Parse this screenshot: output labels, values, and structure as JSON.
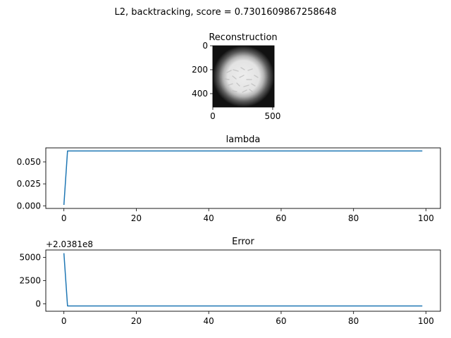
{
  "figure": {
    "suptitle": "L2, backtracking, score = 0.7301609867258648",
    "colors": {
      "line": "#1f77b4",
      "axes": "#000000",
      "background": "#ffffff"
    }
  },
  "chart_data": [
    {
      "type": "heatmap",
      "title": "Reconstruction",
      "xlabel": "",
      "ylabel": "",
      "xlim": [
        0,
        512
      ],
      "ylim": [
        512,
        0
      ],
      "xticks": [
        0,
        500
      ],
      "yticks": [
        0,
        200,
        400
      ],
      "colormap": "gray",
      "description_of_content": "bright circular blob on dark background"
    },
    {
      "type": "line",
      "title": "lambda",
      "xlabel": "",
      "ylabel": "",
      "xlim": [
        -5,
        104
      ],
      "ylim": [
        -0.003,
        0.066
      ],
      "xticks": [
        0,
        20,
        40,
        60,
        80,
        100
      ],
      "yticks": [
        0.0,
        0.025,
        0.05
      ],
      "ytick_labels": [
        "0.000",
        "0.025",
        "0.050"
      ],
      "grid": false,
      "series": [
        {
          "x": [
            0,
            1,
            99
          ],
          "values": [
            0.001,
            0.0625,
            0.0625
          ]
        }
      ]
    },
    {
      "type": "line",
      "title": "Error",
      "xlabel": "",
      "ylabel": "",
      "offset_label": "+2.0381e8",
      "xlim": [
        -5,
        104
      ],
      "ylim": [
        -800,
        5800
      ],
      "xticks": [
        0,
        20,
        40,
        60,
        80,
        100
      ],
      "yticks": [
        0,
        2500,
        5000
      ],
      "grid": false,
      "series": [
        {
          "x": [
            0,
            1,
            99
          ],
          "values": [
            5450,
            -230,
            -230
          ]
        }
      ]
    }
  ]
}
